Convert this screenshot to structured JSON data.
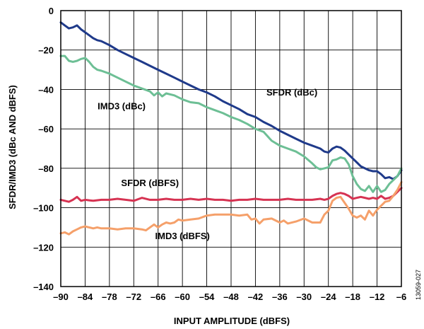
{
  "chart_data": {
    "type": "line",
    "title": "",
    "xlabel": "INPUT AMPLITUDE (dBFS)",
    "ylabel": "SFDR/IMD3 (dBc AND dBFS)",
    "xlim": [
      -90,
      -6
    ],
    "ylim": [
      -140,
      0
    ],
    "x_ticks": [
      -90,
      -84,
      -78,
      -72,
      -66,
      -60,
      -54,
      -48,
      -42,
      -36,
      -30,
      -24,
      -18,
      -12,
      -6
    ],
    "y_ticks": [
      0,
      -20,
      -40,
      -60,
      -80,
      -100,
      -120,
      -140
    ],
    "grid": true,
    "legend": "none",
    "figure_id": "13059-027",
    "series": [
      {
        "name": "SFDR (dBc)",
        "color": "#1f3a8a",
        "x": [
          -90,
          -89,
          -88,
          -87,
          -86,
          -85,
          -84,
          -83,
          -82,
          -81,
          -80,
          -78,
          -76,
          -74,
          -72,
          -70,
          -68,
          -66,
          -64,
          -62,
          -60,
          -58,
          -56,
          -54,
          -52,
          -50,
          -48,
          -46,
          -44,
          -42,
          -40,
          -38,
          -36,
          -34,
          -32,
          -30,
          -28,
          -26,
          -25,
          -24,
          -23,
          -22,
          -21,
          -20,
          -19,
          -18,
          -17,
          -16,
          -15,
          -14,
          -13,
          -12,
          -11,
          -10,
          -9,
          -8,
          -7,
          -6
        ],
        "values": [
          -6,
          -7.5,
          -9,
          -8.5,
          -7.5,
          -9.5,
          -11,
          -12.5,
          -14,
          -15,
          -15.5,
          -17.5,
          -20,
          -22,
          -24,
          -26,
          -28,
          -30,
          -32,
          -34,
          -36,
          -38,
          -40,
          -41.5,
          -43.5,
          -46,
          -48,
          -50,
          -52.5,
          -54,
          -56.5,
          -58.5,
          -61,
          -63,
          -65,
          -67,
          -68.5,
          -70,
          -71.5,
          -72,
          -70,
          -69,
          -69.5,
          -71,
          -73,
          -75,
          -77,
          -79,
          -80,
          -81,
          -81.5,
          -81.5,
          -83,
          -85,
          -84.5,
          -85.5,
          -84,
          -81
        ]
      },
      {
        "name": "IMD3 (dBc)",
        "color": "#6dbf95",
        "x": [
          -90,
          -89,
          -88,
          -87,
          -86,
          -85,
          -84,
          -83,
          -82,
          -81,
          -80,
          -78,
          -76,
          -74,
          -72,
          -70,
          -68,
          -67,
          -66,
          -65,
          -64,
          -62,
          -60,
          -58,
          -56,
          -54,
          -52,
          -50,
          -48,
          -46,
          -44,
          -42,
          -40,
          -38,
          -36,
          -34,
          -32,
          -30,
          -28,
          -27,
          -26,
          -25,
          -24,
          -23,
          -22,
          -21,
          -20,
          -19,
          -18,
          -17,
          -16,
          -15,
          -14,
          -13,
          -12,
          -11,
          -10,
          -9,
          -8,
          -7,
          -6
        ],
        "values": [
          -23,
          -23,
          -25.5,
          -26,
          -25.5,
          -24.5,
          -24,
          -26,
          -28.5,
          -30,
          -30.5,
          -32,
          -34,
          -36,
          -38,
          -39.5,
          -41,
          -43,
          -41.5,
          -43.5,
          -42,
          -43,
          -45,
          -46.5,
          -47,
          -49,
          -50.5,
          -52,
          -54,
          -55.5,
          -57.5,
          -60,
          -61.5,
          -66,
          -68.5,
          -70,
          -71.5,
          -74,
          -77.5,
          -79.5,
          -80.5,
          -80,
          -79.5,
          -76,
          -75.5,
          -74.5,
          -75,
          -78,
          -84,
          -88,
          -90.5,
          -91.5,
          -89,
          -92,
          -89,
          -92,
          -91,
          -88,
          -86,
          -84,
          -80
        ]
      },
      {
        "name": "SFDR (dBFS)",
        "color": "#d63352",
        "x": [
          -90,
          -89,
          -88,
          -87,
          -86,
          -85,
          -84,
          -82,
          -80,
          -78,
          -76,
          -74,
          -72,
          -70,
          -68,
          -66,
          -64,
          -62,
          -60,
          -58,
          -56,
          -54,
          -52,
          -50,
          -48,
          -46,
          -44,
          -42,
          -40,
          -38,
          -36,
          -34,
          -32,
          -30,
          -28,
          -26,
          -25,
          -24,
          -23,
          -22,
          -21,
          -20,
          -19,
          -18,
          -17,
          -16,
          -15,
          -14,
          -13,
          -12,
          -11,
          -10,
          -9,
          -8,
          -7,
          -6
        ],
        "values": [
          -96,
          -96.5,
          -97,
          -96,
          -94.5,
          -96.5,
          -96,
          -96.5,
          -96,
          -96,
          -95.5,
          -96,
          -96.5,
          -95,
          -96,
          -96,
          -95.5,
          -96,
          -96,
          -95.5,
          -96,
          -95.5,
          -96,
          -96,
          -96.5,
          -96,
          -96,
          -95.5,
          -96,
          -96,
          -96,
          -95.5,
          -96,
          -96,
          -96,
          -95.5,
          -96,
          -95.5,
          -94,
          -93,
          -92.5,
          -93,
          -94,
          -95.5,
          -95,
          -94.5,
          -95,
          -95.5,
          -95,
          -95.5,
          -94,
          -95.5,
          -95,
          -94,
          -92,
          -90
        ]
      },
      {
        "name": "IMD3 (dBFS)",
        "color": "#f5a06a",
        "x": [
          -90,
          -89,
          -88,
          -87,
          -86,
          -85,
          -84,
          -83,
          -82,
          -81,
          -80,
          -78,
          -76,
          -74,
          -72,
          -70,
          -69,
          -68,
          -67,
          -66,
          -65,
          -64,
          -63,
          -62,
          -61,
          -60,
          -58,
          -56,
          -54,
          -52,
          -50,
          -48,
          -46,
          -44,
          -43,
          -42,
          -41,
          -40,
          -38,
          -36,
          -35,
          -34,
          -32,
          -30,
          -28,
          -26,
          -25,
          -24,
          -23,
          -22,
          -21,
          -20,
          -19,
          -18,
          -17,
          -16,
          -15,
          -14,
          -13,
          -12,
          -11,
          -10,
          -9,
          -8,
          -7,
          -6
        ],
        "values": [
          -113,
          -112.5,
          -113.5,
          -112,
          -111,
          -110,
          -109.5,
          -110,
          -110.5,
          -110,
          -110.5,
          -110.5,
          -111,
          -110.5,
          -110.5,
          -111,
          -111.5,
          -110,
          -108.5,
          -110,
          -108.5,
          -107.5,
          -108,
          -107.5,
          -106,
          -106.5,
          -106,
          -105.5,
          -104,
          -103.5,
          -103.5,
          -103.5,
          -104,
          -103.5,
          -106,
          -105.5,
          -108,
          -106,
          -105.5,
          -107.5,
          -106.5,
          -108,
          -107,
          -105.5,
          -107.5,
          -107.5,
          -103.5,
          -101.5,
          -96.5,
          -95,
          -94.5,
          -97.5,
          -100.5,
          -104,
          -105,
          -104,
          -106,
          -101.5,
          -104,
          -101,
          -99,
          -97,
          -96.5,
          -94,
          -91,
          -87
        ]
      }
    ],
    "annotations": [
      {
        "text": "SFDR (dBc)",
        "x": -33,
        "y": -43
      },
      {
        "text": "IMD3 (dBc)",
        "x": -75,
        "y": -50
      },
      {
        "text": "SFDR (dBFS)",
        "x": -68,
        "y": -89
      },
      {
        "text": "IMD3 (dBFS)",
        "x": -60,
        "y": -116
      }
    ]
  }
}
